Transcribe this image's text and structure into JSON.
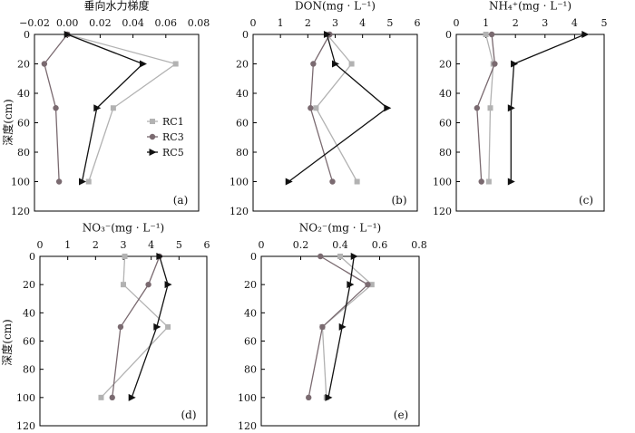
{
  "chart_data": [
    {
      "type": "line",
      "panel": "(a)",
      "title": "垂向水力梯度",
      "ylabel": "深度(cm)",
      "xlim": [
        -0.02,
        0.08
      ],
      "ylim": [
        0,
        120
      ],
      "x_ticks": [
        "−0.02",
        "0.00",
        "0.02",
        "0.04",
        "0.06",
        "0.08"
      ],
      "y_ticks": [
        "0",
        "20",
        "40",
        "60",
        "80",
        "100",
        "120"
      ],
      "legend": "right-middle",
      "series": [
        {
          "name": "RC1",
          "color": "#b2b2b2",
          "marker": "square",
          "x": [
            0.0,
            0.066,
            0.028,
            0.013
          ],
          "y": [
            0,
            20,
            50,
            100
          ]
        },
        {
          "name": "RC3",
          "color": "#7a6a70",
          "marker": "circle",
          "x": [
            0.0,
            -0.014,
            -0.007,
            -0.005
          ],
          "y": [
            0,
            20,
            50,
            100
          ]
        },
        {
          "name": "RC5",
          "color": "#111111",
          "marker": "triangle",
          "x": [
            0.0,
            0.046,
            0.018,
            0.009
          ],
          "y": [
            0,
            20,
            50,
            100
          ]
        }
      ]
    },
    {
      "type": "line",
      "panel": "(b)",
      "title": "DON(mg · L⁻¹)",
      "xlim": [
        0,
        6
      ],
      "ylim": [
        0,
        120
      ],
      "x_ticks": [
        "0",
        "1",
        "2",
        "3",
        "4",
        "5",
        "6"
      ],
      "y_ticks": [
        "0",
        "20",
        "40",
        "60",
        "80",
        "100",
        "120"
      ],
      "series": [
        {
          "name": "RC1",
          "color": "#b2b2b2",
          "marker": "square",
          "x": [
            2.7,
            3.6,
            2.3,
            3.8
          ],
          "y": [
            0,
            20,
            50,
            100
          ]
        },
        {
          "name": "RC3",
          "color": "#7a6a70",
          "marker": "circle",
          "x": [
            2.8,
            2.2,
            2.1,
            2.9
          ],
          "y": [
            0,
            20,
            50,
            100
          ]
        },
        {
          "name": "RC5",
          "color": "#111111",
          "marker": "triangle",
          "x": [
            2.7,
            3.0,
            4.9,
            1.3
          ],
          "y": [
            0,
            20,
            50,
            100
          ]
        }
      ]
    },
    {
      "type": "line",
      "panel": "(c)",
      "title": "NH₄⁺(mg · L⁻¹)",
      "xlim": [
        0,
        5
      ],
      "ylim": [
        0,
        120
      ],
      "x_ticks": [
        "0",
        "1",
        "2",
        "3",
        "4",
        "5"
      ],
      "y_ticks": [
        "0",
        "20",
        "40",
        "60",
        "80",
        "100",
        "120"
      ],
      "series": [
        {
          "name": "RC1",
          "color": "#b2b2b2",
          "marker": "square",
          "x": [
            1.0,
            1.25,
            1.15,
            1.1
          ],
          "y": [
            0,
            20,
            50,
            100
          ]
        },
        {
          "name": "RC3",
          "color": "#7a6a70",
          "marker": "circle",
          "x": [
            1.2,
            1.3,
            0.7,
            0.85
          ],
          "y": [
            0,
            20,
            50,
            100
          ]
        },
        {
          "name": "RC5",
          "color": "#111111",
          "marker": "triangle",
          "x": [
            4.35,
            1.95,
            1.85,
            1.85
          ],
          "y": [
            0,
            20,
            50,
            100
          ]
        }
      ]
    },
    {
      "type": "line",
      "panel": "(d)",
      "title": "NO₃⁻(mg · L⁻¹)",
      "ylabel": "深度(cm)",
      "xlim": [
        0,
        6
      ],
      "ylim": [
        0,
        120
      ],
      "x_ticks": [
        "0",
        "1",
        "2",
        "3",
        "4",
        "5",
        "6"
      ],
      "y_ticks": [
        "0",
        "20",
        "40",
        "60",
        "80",
        "100",
        "120"
      ],
      "series": [
        {
          "name": "RC1",
          "color": "#b2b2b2",
          "marker": "square",
          "x": [
            3.05,
            3.0,
            4.6,
            2.2
          ],
          "y": [
            0,
            20,
            50,
            100
          ]
        },
        {
          "name": "RC3",
          "color": "#7a6a70",
          "marker": "circle",
          "x": [
            4.3,
            3.9,
            2.9,
            2.6
          ],
          "y": [
            0,
            20,
            50,
            100
          ]
        },
        {
          "name": "RC5",
          "color": "#111111",
          "marker": "triangle",
          "x": [
            4.3,
            4.6,
            4.2,
            3.3
          ],
          "y": [
            0,
            20,
            50,
            100
          ]
        }
      ]
    },
    {
      "type": "line",
      "panel": "(e)",
      "title": "NO₂⁻(mg · L⁻¹)",
      "xlim": [
        0,
        0.8
      ],
      "ylim": [
        0,
        120
      ],
      "x_ticks": [
        "0",
        "0.2",
        "0.4",
        "0.6",
        "0.8"
      ],
      "y_ticks": [
        "0",
        "20",
        "40",
        "60",
        "80",
        "100",
        "120"
      ],
      "series": [
        {
          "name": "RC1",
          "color": "#b2b2b2",
          "marker": "square",
          "x": [
            0.4,
            0.56,
            0.31,
            0.33
          ],
          "y": [
            0,
            20,
            50,
            100
          ]
        },
        {
          "name": "RC3",
          "color": "#7a6a70",
          "marker": "circle",
          "x": [
            0.3,
            0.54,
            0.31,
            0.24
          ],
          "y": [
            0,
            20,
            50,
            100
          ]
        },
        {
          "name": "RC5",
          "color": "#111111",
          "marker": "triangle",
          "x": [
            0.47,
            0.45,
            0.41,
            0.34
          ],
          "y": [
            0,
            20,
            50,
            100
          ]
        }
      ]
    }
  ]
}
